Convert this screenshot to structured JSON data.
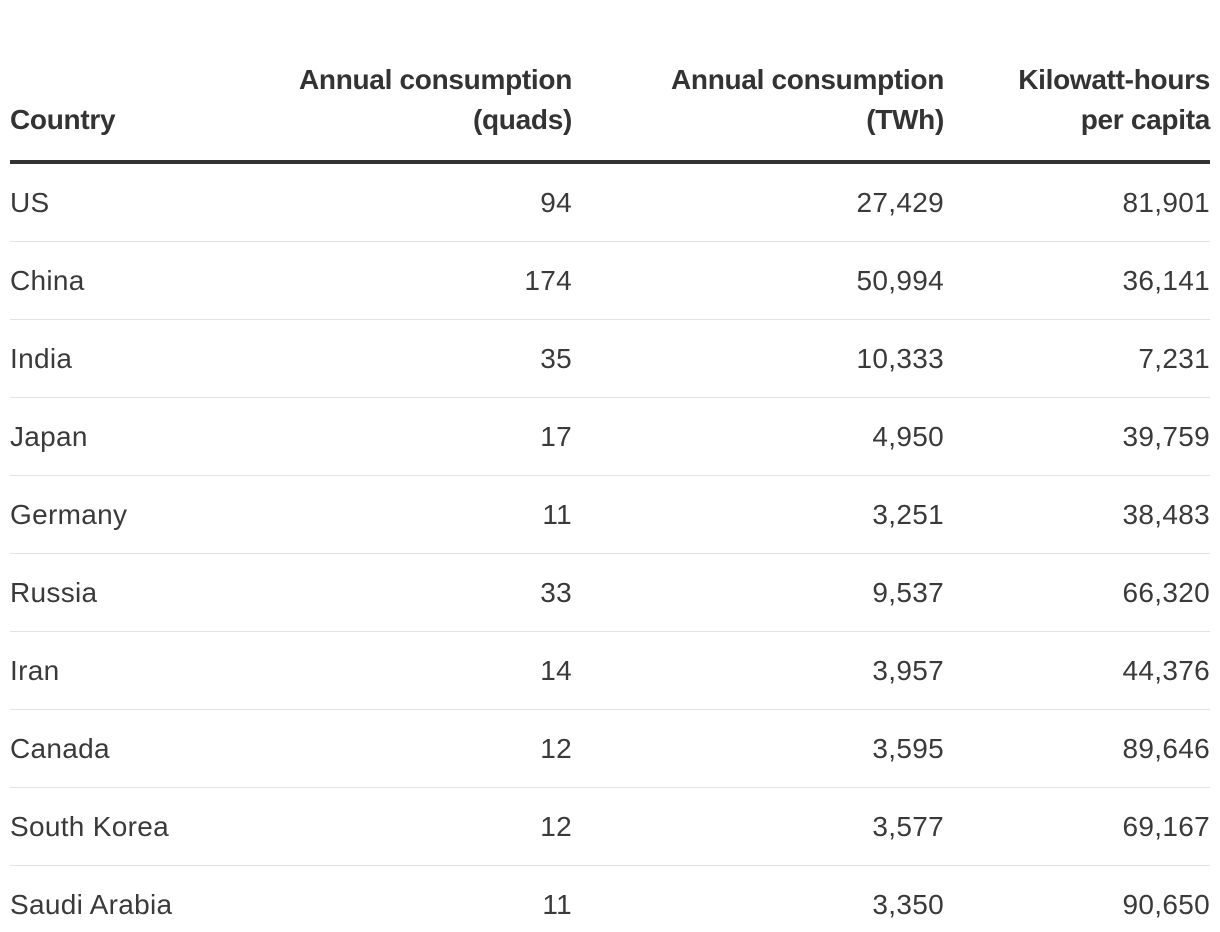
{
  "table": {
    "headers": {
      "country": [
        "Country"
      ],
      "quads": [
        "Annual consumption",
        "(quads)"
      ],
      "twh": [
        "Annual consumption",
        "(TWh)"
      ],
      "per_capita": [
        "Kilowatt-hours",
        "per capita"
      ]
    },
    "rows": [
      {
        "country": "US",
        "quads": "94",
        "twh": "27,429",
        "per_capita": "81,901"
      },
      {
        "country": "China",
        "quads": "174",
        "twh": "50,994",
        "per_capita": "36,141"
      },
      {
        "country": "India",
        "quads": "35",
        "twh": "10,333",
        "per_capita": "7,231"
      },
      {
        "country": "Japan",
        "quads": "17",
        "twh": "4,950",
        "per_capita": "39,759"
      },
      {
        "country": "Germany",
        "quads": "11",
        "twh": "3,251",
        "per_capita": "38,483"
      },
      {
        "country": "Russia",
        "quads": "33",
        "twh": "9,537",
        "per_capita": "66,320"
      },
      {
        "country": "Iran",
        "quads": "14",
        "twh": "3,957",
        "per_capita": "44,376"
      },
      {
        "country": "Canada",
        "quads": "12",
        "twh": "3,595",
        "per_capita": "89,646"
      },
      {
        "country": "South Korea",
        "quads": "12",
        "twh": "3,577",
        "per_capita": "69,167"
      },
      {
        "country": "Saudi Arabia",
        "quads": "11",
        "twh": "3,350",
        "per_capita": "90,650"
      }
    ]
  },
  "colors": {
    "text": "#333333",
    "header_rule": "#333333",
    "row_divider": "#e2e2e2",
    "background": "#ffffff"
  }
}
